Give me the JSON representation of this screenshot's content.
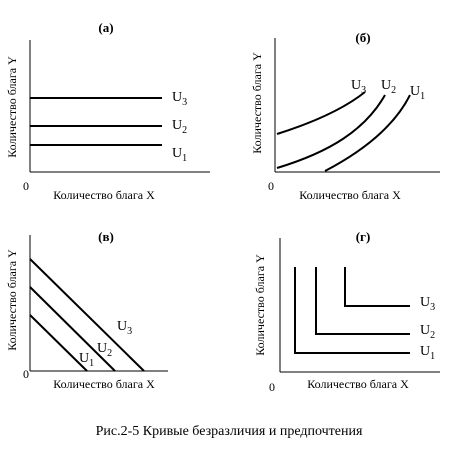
{
  "caption": "Рис.2-5  Кривые безразличия и предпочтения",
  "panels": [
    {
      "id": "a",
      "label": "(а)",
      "x_label": "Количество блага X",
      "y_label": "Количество блага Y",
      "origin": "0",
      "curves": [
        {
          "name": "U",
          "sub": "1"
        },
        {
          "name": "U",
          "sub": "2"
        },
        {
          "name": "U",
          "sub": "3"
        }
      ]
    },
    {
      "id": "b",
      "label": "(б)",
      "x_label": "Количество блага X",
      "y_label": "Количество блага Y",
      "origin": "0",
      "curves": [
        {
          "name": "U",
          "sub": "1"
        },
        {
          "name": "U",
          "sub": "2"
        },
        {
          "name": "U",
          "sub": "3"
        }
      ]
    },
    {
      "id": "v",
      "label": "(в)",
      "x_label": "Количество блага X",
      "y_label": "Количество блага Y",
      "origin": "0",
      "curves": [
        {
          "name": "U",
          "sub": "1"
        },
        {
          "name": "U",
          "sub": "2"
        },
        {
          "name": "U",
          "sub": "3"
        }
      ]
    },
    {
      "id": "g",
      "label": "(г)",
      "x_label": "Количество блага X",
      "y_label": "Количество блага Y",
      "origin": "0",
      "curves": [
        {
          "name": "U",
          "sub": "1"
        },
        {
          "name": "U",
          "sub": "2"
        },
        {
          "name": "U",
          "sub": "3"
        }
      ]
    }
  ]
}
